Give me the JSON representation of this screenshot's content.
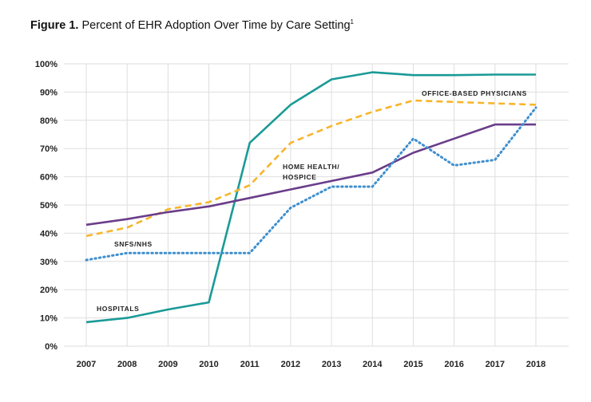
{
  "title": {
    "figure": "Figure 1.",
    "text": "Percent of EHR Adoption Over Time by Care Setting",
    "footnote": "1"
  },
  "chart_data": {
    "type": "line",
    "title": "Figure 1. Percent of EHR Adoption Over Time by Care Setting",
    "xlabel": "",
    "ylabel": "",
    "x": [
      "2007",
      "2008",
      "2009",
      "2010",
      "2011",
      "2012",
      "2013",
      "2014",
      "2015",
      "2016",
      "2017",
      "2018"
    ],
    "ylim": [
      0,
      100
    ],
    "yticks": [
      0,
      10,
      20,
      30,
      40,
      50,
      60,
      70,
      80,
      90,
      100
    ],
    "ytick_labels": [
      "0%",
      "10%",
      "20%",
      "30%",
      "40%",
      "50%",
      "60%",
      "70%",
      "80%",
      "90%",
      "100%"
    ],
    "grid": true,
    "series": [
      {
        "name": "HOSPITALS",
        "color": "#1a9a97",
        "dash": "solid",
        "values": [
          8.5,
          10,
          13,
          15.5,
          72,
          85.5,
          94.5,
          97,
          96,
          96,
          96.2,
          96.2
        ]
      },
      {
        "name": "OFFICE-BASED PHYSICIANS",
        "color": "#f7b52a",
        "dash": "dashed",
        "values": [
          39,
          42,
          48.5,
          51,
          57,
          72,
          78,
          83,
          87,
          86.5,
          86,
          85.5
        ]
      },
      {
        "name": "HOME HEALTH/ HOSPICE",
        "color": "#6a3d8a",
        "dash": "solid",
        "values": [
          43,
          45,
          47.5,
          49.5,
          52.5,
          55.5,
          58.5,
          61.5,
          68.5,
          73.5,
          78.5,
          78.5
        ]
      },
      {
        "name": "SNFS/NHS",
        "color": "#3f8fce",
        "dash": "dotted",
        "values": [
          30.5,
          33,
          33,
          33,
          33,
          49,
          56.5,
          56.5,
          73.5,
          64,
          66,
          84.5
        ]
      }
    ],
    "annotations": [
      {
        "text": "OFFICE-BASED PHYSICIANS"
      },
      {
        "text": "HOME HEALTH/"
      },
      {
        "text": "HOSPICE"
      },
      {
        "text": "SNFS/NHS"
      },
      {
        "text": "HOSPITALS"
      }
    ]
  }
}
